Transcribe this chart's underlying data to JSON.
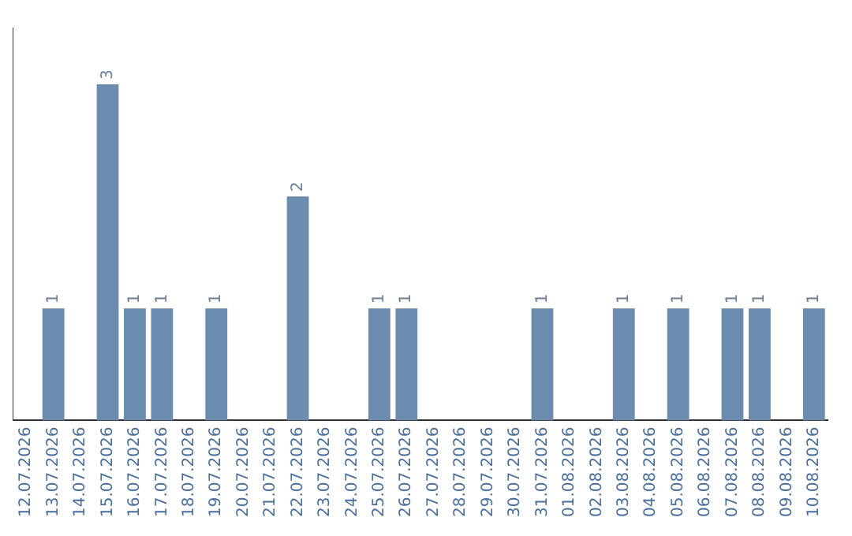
{
  "chart_data": {
    "type": "bar",
    "categories": [
      "12.07.2026",
      "13.07.2026",
      "14.07.2026",
      "15.07.2026",
      "16.07.2026",
      "17.07.2026",
      "18.07.2026",
      "19.07.2026",
      "20.07.2026",
      "21.07.2026",
      "22.07.2026",
      "23.07.2026",
      "24.07.2026",
      "25.07.2026",
      "26.07.2026",
      "27.07.2026",
      "28.07.2026",
      "29.07.2026",
      "30.07.2026",
      "31.07.2026",
      "01.08.2026",
      "02.08.2026",
      "03.08.2026",
      "04.08.2026",
      "05.08.2026",
      "06.08.2026",
      "07.08.2026",
      "08.08.2026",
      "09.08.2026",
      "10.08.2026"
    ],
    "values": [
      0,
      1,
      0,
      3,
      1,
      1,
      0,
      1,
      0,
      0,
      2,
      0,
      0,
      1,
      1,
      0,
      0,
      0,
      0,
      1,
      0,
      0,
      1,
      0,
      1,
      0,
      1,
      1,
      0,
      1
    ],
    "value_labels": [
      null,
      "1",
      null,
      "3",
      "1",
      "1",
      null,
      "1",
      null,
      null,
      "2",
      null,
      null,
      "1",
      "1",
      null,
      null,
      null,
      null,
      "1",
      null,
      null,
      "1",
      null,
      "1",
      null,
      "1",
      "1",
      null,
      "1"
    ],
    "color": "#6b8cae",
    "grid": false,
    "legend": false,
    "tick_labels": "x"
  }
}
